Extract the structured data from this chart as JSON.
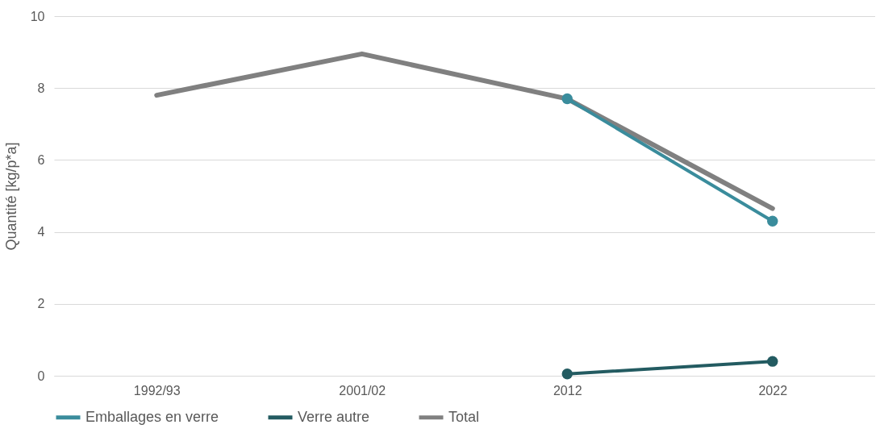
{
  "chart_data": {
    "type": "line",
    "ylabel": "Quantité [kg/p*a]",
    "categories": [
      "1992/93",
      "2001/02",
      "2012",
      "2022"
    ],
    "ylim": [
      0,
      10
    ],
    "yticks": [
      0,
      2,
      4,
      6,
      8,
      10
    ],
    "grid": "y",
    "legend": "bottom",
    "series": [
      {
        "name": "Emballages en verre",
        "color": "#3a8c9c",
        "marker": "circle",
        "values": [
          null,
          null,
          7.7,
          4.3
        ]
      },
      {
        "name": "Verre autre",
        "color": "#235b61",
        "marker": "circle",
        "values": [
          null,
          null,
          0.05,
          0.4
        ]
      },
      {
        "name": "Total",
        "color": "#808080",
        "marker": "none",
        "values": [
          7.8,
          8.95,
          7.7,
          4.65
        ]
      }
    ]
  }
}
